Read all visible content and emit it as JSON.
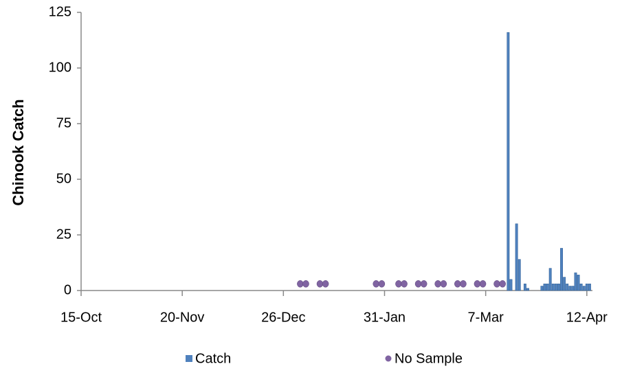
{
  "chart_data": {
    "type": "bar",
    "y_label": "Chinook Catch",
    "xlim": [
      0,
      182
    ],
    "xticks": [
      {
        "value": 0,
        "label": "15-Oct"
      },
      {
        "value": 36,
        "label": "20-Nov"
      },
      {
        "value": 72,
        "label": "26-Dec"
      },
      {
        "value": 108,
        "label": "31-Jan"
      },
      {
        "value": 144,
        "label": "7-Mar"
      },
      {
        "value": 180,
        "label": "12-Apr"
      }
    ],
    "ylim": [
      0,
      125
    ],
    "yticks": [
      0,
      25,
      50,
      75,
      100,
      125
    ],
    "legend": "bottom",
    "series": [
      {
        "name": "Catch",
        "type": "bar",
        "color": "#4f81bd",
        "x": [
          152,
          153,
          155,
          156,
          158,
          159,
          164,
          165,
          166,
          167,
          168,
          169,
          170,
          171,
          172,
          173,
          174,
          175,
          176,
          177,
          178,
          179,
          180,
          181
        ],
        "values": [
          116,
          5,
          30,
          14,
          3,
          1,
          2,
          3,
          3,
          10,
          3,
          3,
          3,
          19,
          6,
          3,
          2,
          2,
          8,
          7,
          3,
          2,
          3,
          3
        ]
      },
      {
        "name": "No Sample",
        "type": "scatter",
        "color": "#8064a2",
        "x": [
          78,
          80,
          85,
          87,
          105,
          107,
          113,
          115,
          120,
          122,
          127,
          129,
          134,
          136,
          141,
          143,
          148,
          150
        ],
        "values": [
          3,
          3,
          3,
          3,
          3,
          3,
          3,
          3,
          3,
          3,
          3,
          3,
          3,
          3,
          3,
          3,
          3,
          3
        ]
      }
    ]
  }
}
